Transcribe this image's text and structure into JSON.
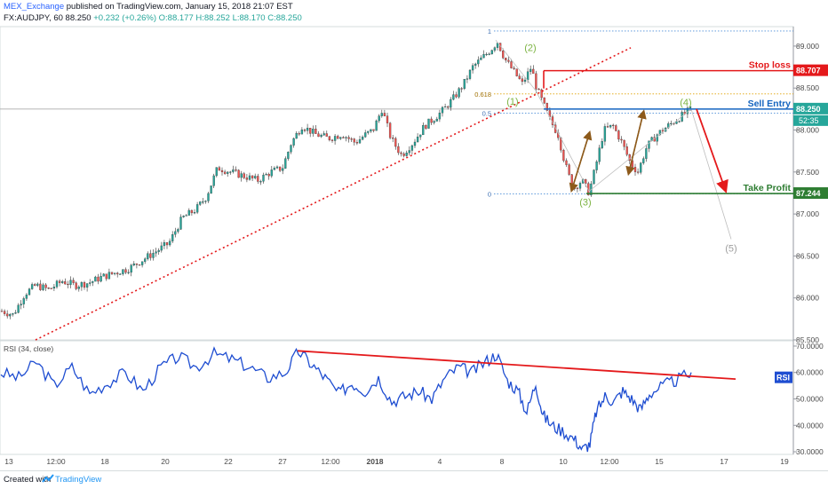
{
  "header": {
    "author": "MEX_Exchange",
    "published": "published on TradingView.com, January 15, 2018 21:07 EST",
    "symbol": "FX:AUDJPY, 60",
    "last": "88.250",
    "change": "+0.232 (+0.26%)",
    "ohlc": {
      "o": "O:88.177",
      "h": "H:88.252",
      "l": "L:88.170",
      "c": "C:88.250"
    }
  },
  "footer": {
    "created": "Created with",
    "brand": "TradingView"
  },
  "colors": {
    "bull": "#26a69a",
    "bear": "#ef5350",
    "rsi": "#1e4dd1",
    "red": "#e4191b",
    "green": "#2e7d32",
    "blue": "#1565c0",
    "brown": "#8d5a1b",
    "fib": "#1976d2"
  },
  "chart_data": [
    {
      "type": "candlestick",
      "title": "",
      "ylim": [
        85.5,
        89.2
      ],
      "y_ticks": [
        "89.000",
        "88.500",
        "88.000",
        "87.500",
        "87.000",
        "86.500",
        "86.000",
        "85.500"
      ],
      "x_ticks": [
        "13",
        "12:00",
        "18",
        "20",
        "22",
        "27",
        "12:00",
        "2018",
        "4",
        "8",
        "10",
        "12:00",
        "15",
        "17",
        "19"
      ],
      "price_series": [
        [
          0,
          85.85
        ],
        [
          15,
          85.8
        ],
        [
          28,
          86.05
        ],
        [
          40,
          86.15
        ],
        [
          55,
          86.1
        ],
        [
          70,
          86.2
        ],
        [
          85,
          86.15
        ],
        [
          100,
          86.18
        ],
        [
          115,
          86.25
        ],
        [
          130,
          86.3
        ],
        [
          145,
          86.35
        ],
        [
          160,
          86.45
        ],
        [
          175,
          86.55
        ],
        [
          190,
          86.65
        ],
        [
          205,
          86.95
        ],
        [
          220,
          87.05
        ],
        [
          232,
          87.2
        ],
        [
          245,
          87.55
        ],
        [
          260,
          87.5
        ],
        [
          275,
          87.45
        ],
        [
          290,
          87.4
        ],
        [
          305,
          87.5
        ],
        [
          318,
          87.55
        ],
        [
          328,
          87.85
        ],
        [
          340,
          88.05
        ],
        [
          355,
          87.95
        ],
        [
          370,
          87.9
        ],
        [
          385,
          87.95
        ],
        [
          400,
          87.85
        ],
        [
          412,
          87.95
        ],
        [
          420,
          88.0
        ],
        [
          430,
          88.25
        ],
        [
          440,
          87.9
        ],
        [
          452,
          87.7
        ],
        [
          465,
          87.85
        ],
        [
          478,
          88.05
        ],
        [
          490,
          88.15
        ],
        [
          500,
          88.25
        ],
        [
          512,
          88.4
        ],
        [
          522,
          88.55
        ],
        [
          532,
          88.75
        ],
        [
          542,
          88.85
        ],
        [
          552,
          88.95
        ],
        [
          560,
          89.05
        ],
        [
          568,
          88.85
        ],
        [
          578,
          88.7
        ],
        [
          588,
          88.55
        ],
        [
          598,
          88.75
        ],
        [
          604,
          88.5
        ],
        [
          612,
          88.3
        ],
        [
          620,
          88.1
        ],
        [
          628,
          87.95
        ],
        [
          636,
          87.6
        ],
        [
          645,
          87.3
        ],
        [
          655,
          87.4
        ],
        [
          663,
          87.25
        ],
        [
          670,
          87.55
        ],
        [
          680,
          88.0
        ],
        [
          690,
          88.05
        ],
        [
          700,
          87.85
        ],
        [
          710,
          87.6
        ],
        [
          718,
          87.5
        ],
        [
          728,
          87.8
        ],
        [
          740,
          87.95
        ],
        [
          752,
          88.05
        ],
        [
          765,
          88.15
        ],
        [
          778,
          88.25
        ]
      ],
      "annotations": {
        "stop_loss": {
          "label": "Stop loss",
          "price": "88.707",
          "value": 88.707
        },
        "sell_entry": {
          "label": "Sell Entry",
          "price": "88.250",
          "value": 88.25
        },
        "take_profit": {
          "label": "Take Profit",
          "price": "87.244",
          "value": 87.244
        },
        "timer": "52:35",
        "fib": [
          {
            "label": "1",
            "value": 89.18
          },
          {
            "label": "0.618",
            "value": 88.43
          },
          {
            "label": "0.5",
            "value": 88.2
          },
          {
            "label": "0",
            "value": 87.24
          }
        ],
        "waves": [
          {
            "label": "(1)",
            "x": 577,
            "value": 88.3
          },
          {
            "label": "(2)",
            "x": 597,
            "value": 88.94
          },
          {
            "label": "(3)",
            "x": 659,
            "value": 87.1
          },
          {
            "label": "(4)",
            "x": 772,
            "value": 88.29
          },
          {
            "label": "(5)",
            "x": 823,
            "value": 86.55
          }
        ]
      }
    },
    {
      "type": "line",
      "title": "RSI (34, close)",
      "series": [
        {
          "name": "RSI",
          "values": [
            [
              0,
              60
            ],
            [
              20,
              58
            ],
            [
              40,
              64
            ],
            [
              60,
              55
            ],
            [
              80,
              62
            ],
            [
              100,
              52
            ],
            [
              120,
              56
            ],
            [
              140,
              60
            ],
            [
              160,
              53
            ],
            [
              180,
              62
            ],
            [
              200,
              66
            ],
            [
              220,
              62
            ],
            [
              240,
              67
            ],
            [
              260,
              65
            ],
            [
              280,
              62
            ],
            [
              300,
              58
            ],
            [
              320,
              60
            ],
            [
              335,
              68
            ],
            [
              350,
              63
            ],
            [
              365,
              58
            ],
            [
              380,
              52
            ],
            [
              395,
              56
            ],
            [
              410,
              53
            ],
            [
              425,
              58
            ],
            [
              440,
              49
            ],
            [
              455,
              51
            ],
            [
              470,
              53
            ],
            [
              485,
              50
            ],
            [
              500,
              58
            ],
            [
              515,
              62
            ],
            [
              530,
              60
            ],
            [
              545,
              64
            ],
            [
              558,
              67
            ],
            [
              570,
              57
            ],
            [
              582,
              53
            ],
            [
              592,
              45
            ],
            [
              602,
              56
            ],
            [
              610,
              44
            ],
            [
              620,
              40
            ],
            [
              632,
              38
            ],
            [
              645,
              35
            ],
            [
              655,
              31
            ],
            [
              663,
              33
            ],
            [
              670,
              45
            ],
            [
              680,
              51
            ],
            [
              690,
              49
            ],
            [
              700,
              53
            ],
            [
              710,
              50
            ],
            [
              720,
              46
            ],
            [
              730,
              52
            ],
            [
              745,
              55
            ],
            [
              760,
              57
            ],
            [
              778,
              60
            ]
          ]
        }
      ],
      "ylim": [
        29,
        72
      ],
      "y_ticks": [
        "70.0000",
        "60.0000",
        "50.0000",
        "40.0000",
        "30.0000"
      ],
      "badge": "RSI"
    }
  ]
}
